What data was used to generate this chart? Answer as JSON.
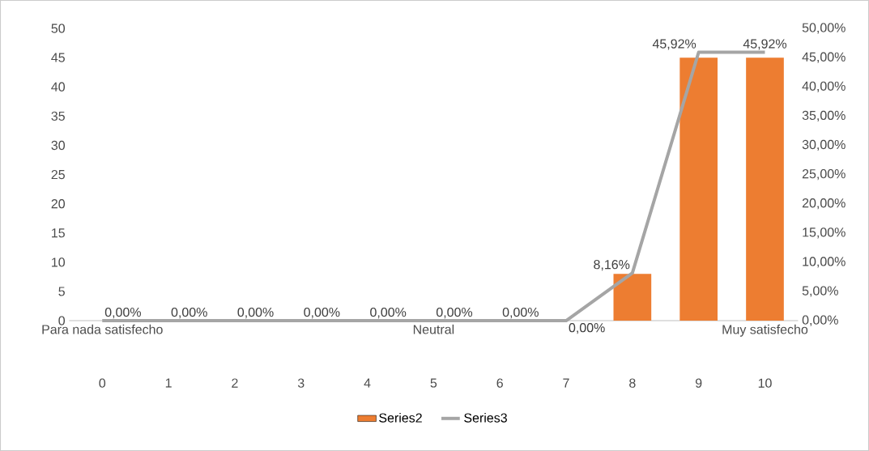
{
  "chart_data": {
    "type": "bar",
    "categories": [
      "0",
      "1",
      "2",
      "3",
      "4",
      "5",
      "6",
      "7",
      "8",
      "9",
      "10"
    ],
    "annotations": [
      "Para nada satisfecho",
      "Neutral",
      "Muy satisfecho"
    ],
    "series": [
      {
        "name": "Series2",
        "color": "#ed7d31",
        "values": [
          0,
          0,
          0,
          0,
          0,
          0,
          0,
          0,
          8,
          45,
          45
        ]
      },
      {
        "name": "Series3",
        "type": "line",
        "axis": "y2",
        "color": "#a5a5a5",
        "values": [
          0,
          0,
          0,
          0,
          0,
          0,
          0,
          0,
          8.16,
          45.92,
          45.92
        ],
        "value_labels": [
          "0,00%",
          "0,00%",
          "0,00%",
          "0,00%",
          "0,00%",
          "0,00%",
          "0,00%",
          "0,00%",
          "8,16%",
          "45,92%",
          "45,92%"
        ]
      }
    ],
    "ylim": [
      0,
      50
    ],
    "yticks": [
      0,
      5,
      10,
      15,
      20,
      25,
      30,
      35,
      40,
      45,
      50
    ],
    "y2lim": [
      0,
      50
    ],
    "y2ticks": [
      {
        "value": 0,
        "label": "0,00%"
      },
      {
        "value": 5,
        "label": "5,00%"
      },
      {
        "value": 10,
        "label": "10,00%"
      },
      {
        "value": 15,
        "label": "15,00%"
      },
      {
        "value": 20,
        "label": "20,00%"
      },
      {
        "value": 25,
        "label": "25,00%"
      },
      {
        "value": 30,
        "label": "30,00%"
      },
      {
        "value": 35,
        "label": "35,00%"
      },
      {
        "value": 40,
        "label": "40,00%"
      },
      {
        "value": 45,
        "label": "45,00%"
      },
      {
        "value": 50,
        "label": "50,00%"
      }
    ],
    "legend": "bottom"
  }
}
